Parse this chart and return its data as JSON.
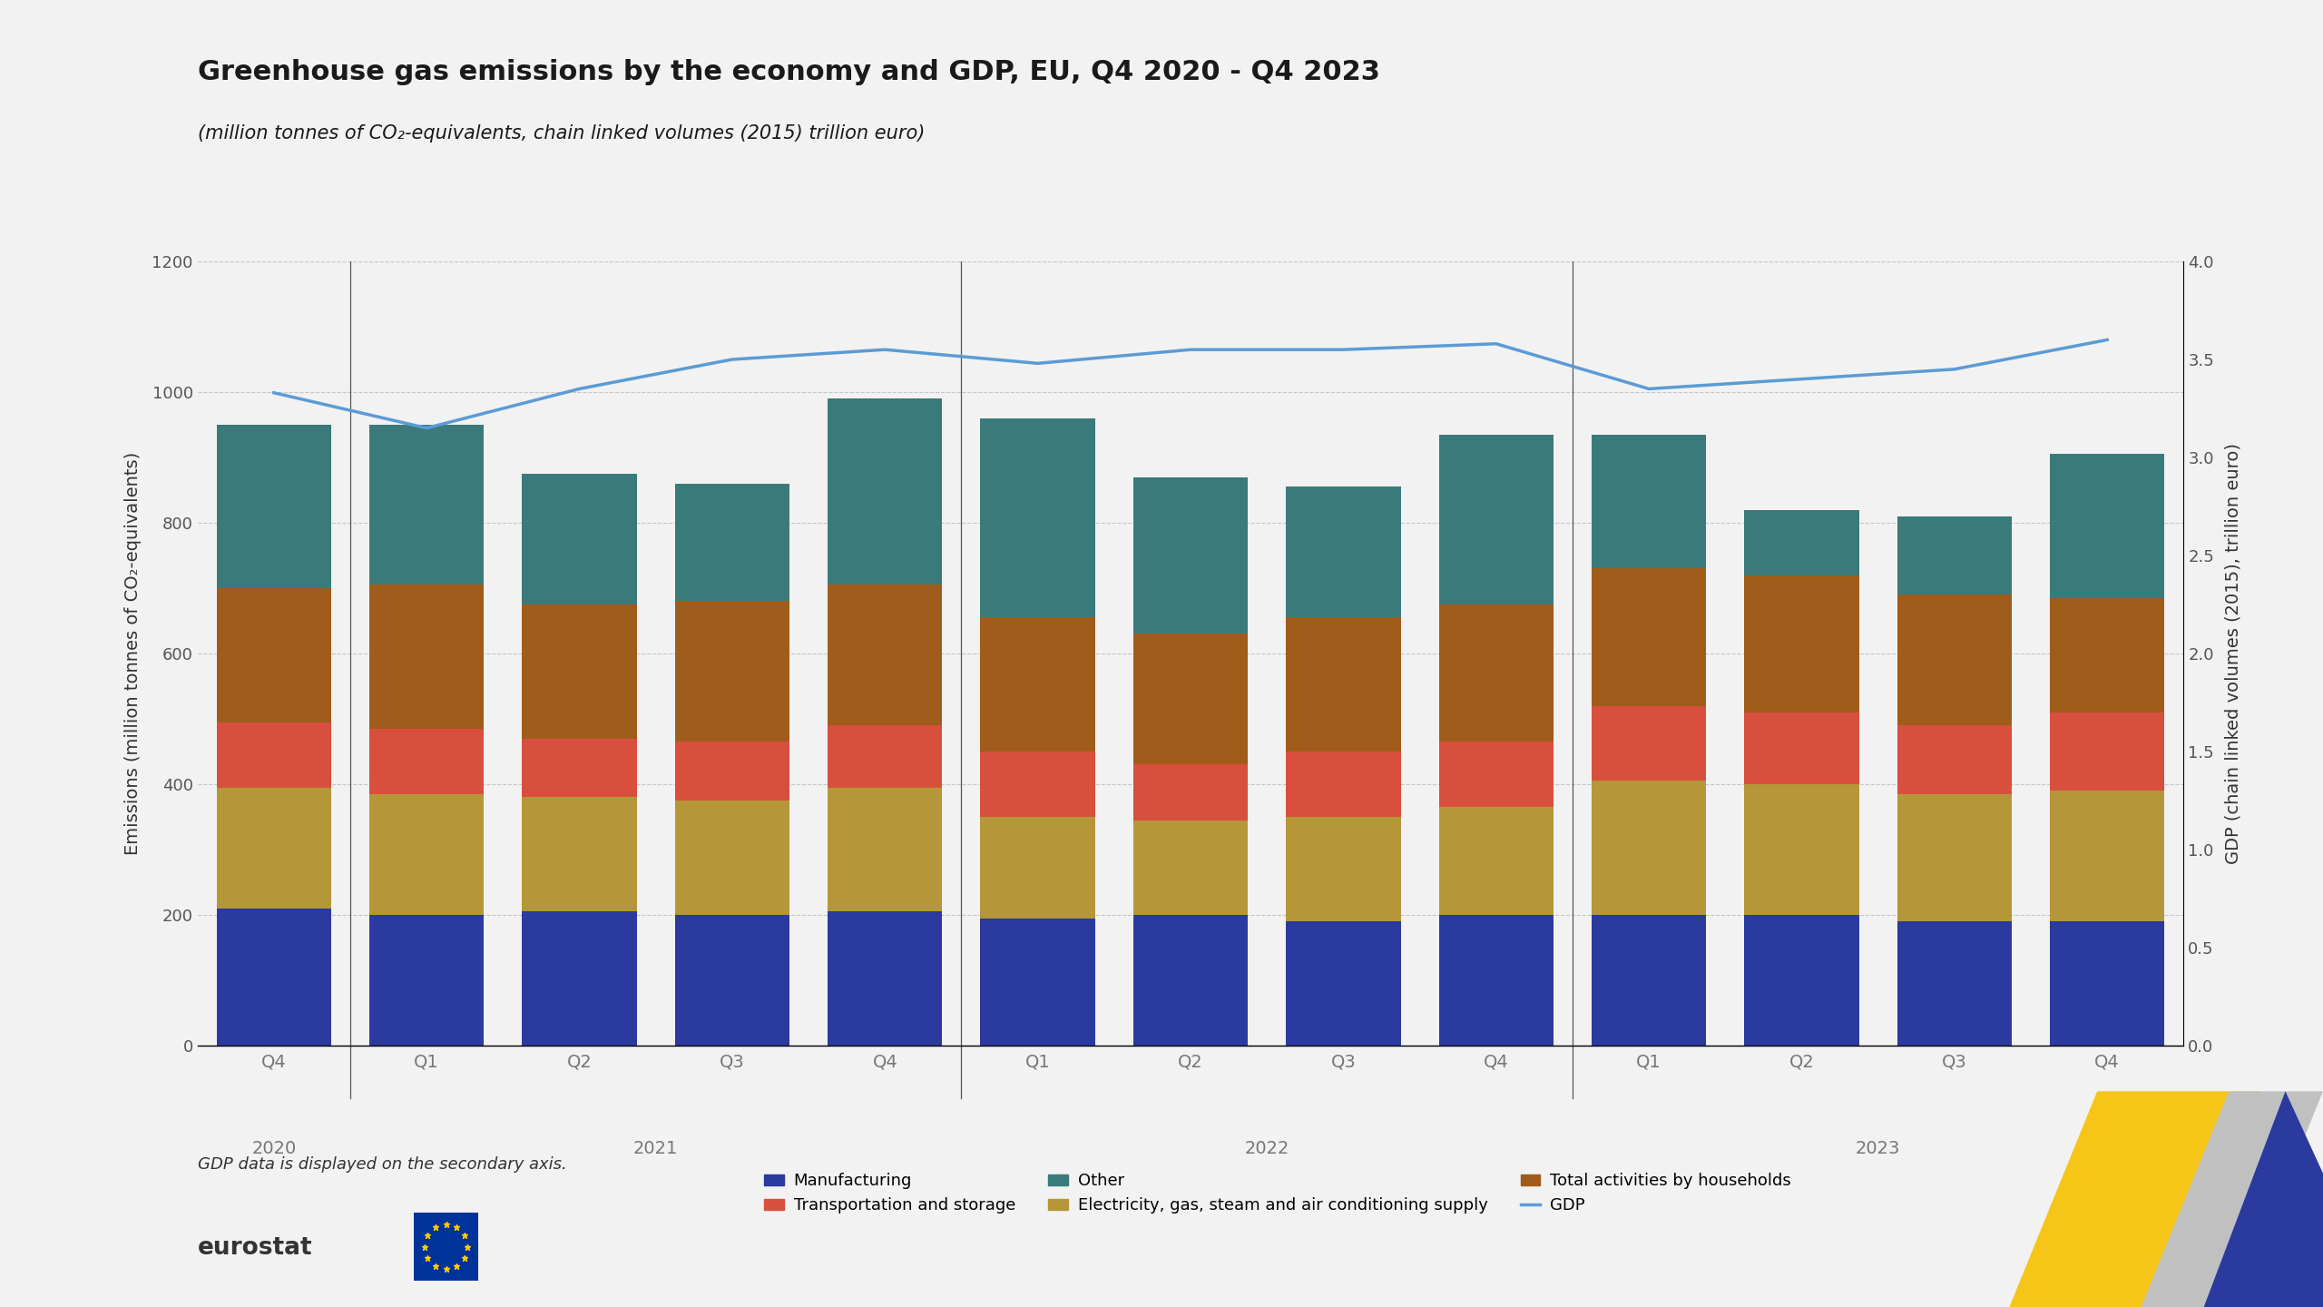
{
  "title": "Greenhouse gas emissions by the economy and GDP, EU, Q4 2020 - Q4 2023",
  "subtitle": "(million tonnes of CO₂-equivalents, chain linked volumes (2015) trillion euro)",
  "ylabel_left": "Emissions (million tonnes of CO₂-equivalents)",
  "ylabel_right": "GDP (chain linked volumes (2015), trillion euro)",
  "background_color": "#f2f2f2",
  "quarter_labels": [
    "Q4",
    "Q1",
    "Q2",
    "Q3",
    "Q4",
    "Q1",
    "Q2",
    "Q3",
    "Q4",
    "Q1",
    "Q2",
    "Q3",
    "Q4"
  ],
  "year_centers": [
    0,
    2.5,
    6.5,
    10.5
  ],
  "year_labels": [
    "2020",
    "2021",
    "2022",
    "2023"
  ],
  "year_separators": [
    0.5,
    4.5,
    8.5
  ],
  "manufacturing": [
    210,
    200,
    205,
    200,
    205,
    195,
    200,
    190,
    200,
    200,
    200,
    190,
    190
  ],
  "electricity": [
    185,
    185,
    175,
    175,
    190,
    155,
    145,
    160,
    165,
    205,
    200,
    195,
    200
  ],
  "transportation": [
    100,
    100,
    90,
    90,
    95,
    100,
    85,
    100,
    100,
    115,
    110,
    105,
    120
  ],
  "households": [
    205,
    220,
    205,
    215,
    215,
    205,
    200,
    205,
    210,
    210,
    210,
    200,
    175
  ],
  "other": [
    250,
    245,
    200,
    180,
    285,
    305,
    240,
    200,
    260,
    205,
    100,
    120,
    220
  ],
  "gdp": [
    3.33,
    3.15,
    3.35,
    3.5,
    3.55,
    3.48,
    3.55,
    3.55,
    3.58,
    3.35,
    3.4,
    3.45,
    3.6
  ],
  "colors": {
    "manufacturing": "#2b3a9e",
    "electricity": "#b5973a",
    "transportation": "#d94f3d",
    "households": "#a05c1a",
    "other": "#3a7a7a",
    "gdp": "#5b9bd5"
  },
  "ylim_left": [
    0,
    1200
  ],
  "ylim_right": [
    0,
    4.0
  ],
  "yticks_left": [
    0,
    200,
    400,
    600,
    800,
    1000,
    1200
  ],
  "yticks_right": [
    0,
    0.5,
    1.0,
    1.5,
    2.0,
    2.5,
    3.0,
    3.5,
    4.0
  ],
  "legend_note": "GDP data is displayed on the secondary axis.",
  "legend_items": [
    "Manufacturing",
    "Electricity, gas, steam and air conditioning supply",
    "Transportation and storage",
    "Total activities by households",
    "Other",
    "GDP"
  ]
}
